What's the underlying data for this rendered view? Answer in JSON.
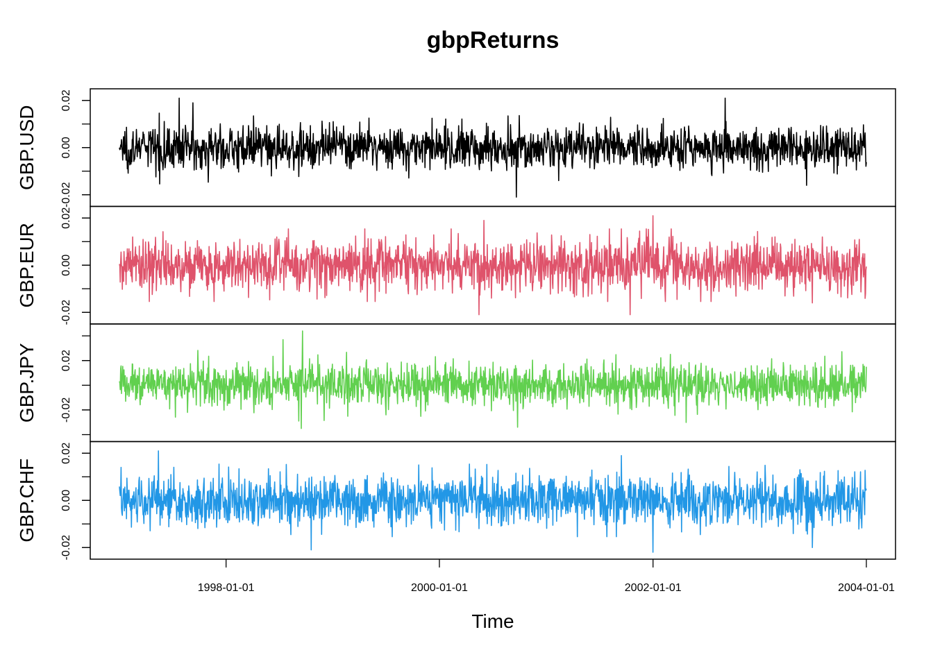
{
  "chart_data": {
    "type": "line",
    "title": "gbpReturns",
    "xlabel": "Time",
    "x_range": [
      "1997-01-01",
      "2004-01-01"
    ],
    "x_ticks": [
      "1998-01-01",
      "2000-01-01",
      "2002-01-01",
      "2004-01-01"
    ],
    "grid": false,
    "series": [
      {
        "name": "GBP.USD",
        "color": "#000000",
        "ylim": [
          -0.022,
          0.022
        ],
        "y_ticks": [
          "-0.02",
          "0.00",
          "0.02"
        ],
        "volatility": 0.0045,
        "extremes": [
          {
            "date": "1997-07-25",
            "value": 0.021
          },
          {
            "date": "1997-09-10",
            "value": 0.019
          },
          {
            "date": "2000-09-20",
            "value": -0.021
          },
          {
            "date": "2002-09-05",
            "value": 0.021
          },
          {
            "date": "2003-06-10",
            "value": -0.016
          }
        ]
      },
      {
        "name": "GBP.EUR",
        "color": "#DF536B",
        "ylim": [
          -0.022,
          0.022
        ],
        "y_ticks": [
          "-0.02",
          "0.00",
          "0.02"
        ],
        "volatility": 0.0055,
        "extremes": [
          {
            "date": "2000-05-15",
            "value": -0.021
          },
          {
            "date": "2000-06-01",
            "value": 0.019
          },
          {
            "date": "2001-10-15",
            "value": -0.021
          },
          {
            "date": "2002-01-01",
            "value": 0.021
          },
          {
            "date": "2003-07-01",
            "value": -0.016
          }
        ]
      },
      {
        "name": "GBP.JPY",
        "color": "#61D04F",
        "ylim": [
          -0.04,
          0.044
        ],
        "y_ticks": [
          "-0.02",
          "0.02"
        ],
        "volatility": 0.0085,
        "extremes": [
          {
            "date": "1998-09-15",
            "value": -0.035
          },
          {
            "date": "1998-09-20",
            "value": 0.044
          },
          {
            "date": "1998-07-15",
            "value": 0.037
          },
          {
            "date": "2000-09-25",
            "value": -0.034
          },
          {
            "date": "2002-03-01",
            "value": 0.025
          }
        ]
      },
      {
        "name": "GBP.CHF",
        "color": "#2297E6",
        "ylim": [
          -0.022,
          0.022
        ],
        "y_ticks": [
          "-0.02",
          "0.00",
          "0.02"
        ],
        "volatility": 0.0055,
        "extremes": [
          {
            "date": "1997-05-15",
            "value": 0.021
          },
          {
            "date": "1998-10-20",
            "value": -0.021
          },
          {
            "date": "2001-09-15",
            "value": 0.019
          },
          {
            "date": "2002-01-01",
            "value": -0.022
          },
          {
            "date": "2003-07-01",
            "value": -0.02
          }
        ]
      }
    ]
  }
}
